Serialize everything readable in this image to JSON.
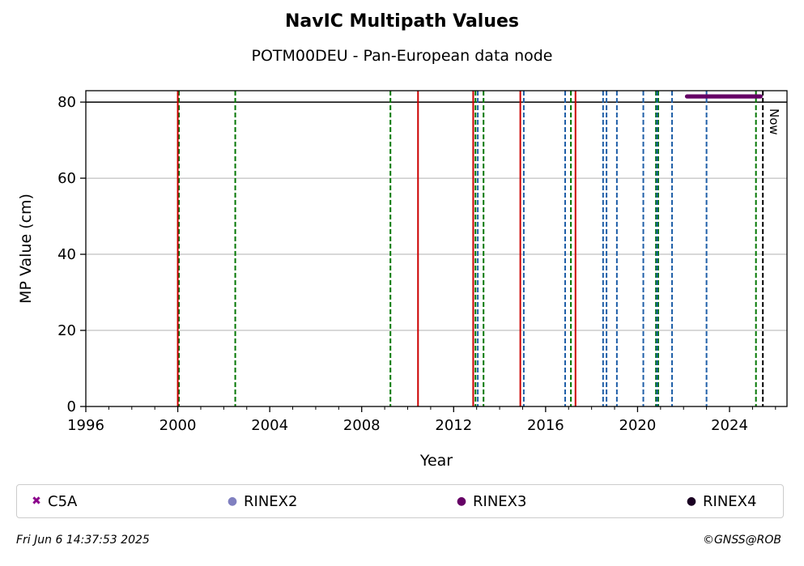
{
  "chart_data": {
    "type": "scatter",
    "title": "NavIC Multipath Values",
    "subtitle": "POTM00DEU - Pan-European data node",
    "xlabel": "Year",
    "ylabel": "MP Value (cm)",
    "xlim": [
      1996,
      2026.5
    ],
    "ylim": [
      0,
      83
    ],
    "x_ticks": [
      1996,
      2000,
      2004,
      2008,
      2012,
      2016,
      2020,
      2024
    ],
    "x_tick_labels": [
      "1996",
      "2000",
      "2004",
      "2008",
      "2012",
      "2016",
      "2020",
      "2024"
    ],
    "y_ticks": [
      0,
      20,
      40,
      60,
      80
    ],
    "y_tick_labels": [
      "0",
      "20",
      "40",
      "60",
      "80"
    ],
    "grid": "horizontal",
    "legend_position": "bottom",
    "series": [
      {
        "name": "C5A",
        "marker": "x",
        "color": "#8b008b",
        "points": []
      },
      {
        "name": "RINEX2",
        "marker": "dot",
        "color": "#8080c0",
        "points": []
      },
      {
        "name": "RINEX3",
        "marker": "dot",
        "color": "#660066",
        "x_start": 2022.15,
        "x_end": 2025.35,
        "y": 81.5
      },
      {
        "name": "RINEX4",
        "marker": "dot",
        "color": "#1a0022",
        "points": []
      }
    ],
    "reference_line": {
      "y": 80,
      "color": "#000000"
    },
    "event_lines": {
      "red_solid": [
        2000.0,
        2010.45,
        2012.85,
        2014.9,
        2017.3
      ],
      "green_dashed": [
        2000.05,
        2002.5,
        2009.25,
        2012.95,
        2013.3,
        2017.1,
        2020.8,
        2020.9,
        2025.15
      ],
      "blue_dashed": [
        2013.05,
        2015.05,
        2016.85,
        2018.5,
        2018.65,
        2019.1,
        2020.25,
        2020.85,
        2021.5,
        2023.0
      ],
      "now": {
        "x": 2025.45,
        "label": "Now"
      }
    },
    "colors": {
      "red": "#cc0000",
      "green": "#007700",
      "blue": "#1f5fa8",
      "now": "#000000"
    }
  },
  "footer": {
    "timestamp": "Fri Jun  6 14:37:53 2025",
    "credit": "©GNSS@ROB"
  }
}
